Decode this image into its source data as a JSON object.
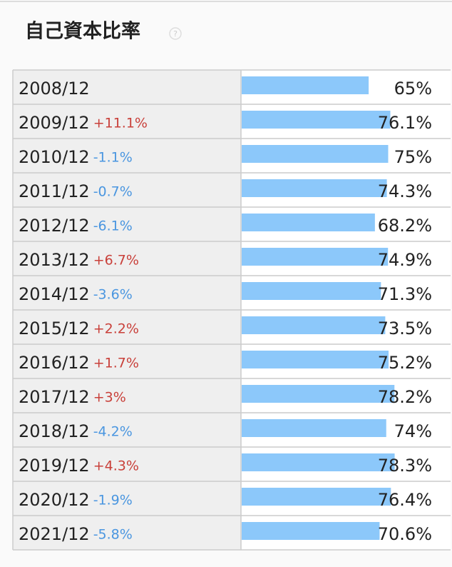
{
  "chart_data": {
    "type": "bar",
    "title": "自己資本比率",
    "categories": [
      "2008/12",
      "2009/12",
      "2010/12",
      "2011/12",
      "2012/12",
      "2013/12",
      "2014/12",
      "2015/12",
      "2016/12",
      "2017/12",
      "2018/12",
      "2019/12",
      "2020/12",
      "2021/12"
    ],
    "changes": [
      null,
      "+11.1%",
      "-1.1%",
      "-0.7%",
      "-6.1%",
      "+6.7%",
      "-3.6%",
      "+2.2%",
      "+1.7%",
      "+3%",
      "-4.2%",
      "+4.3%",
      "-1.9%",
      "-5.8%"
    ],
    "values": [
      65,
      76.1,
      75,
      74.3,
      68.2,
      74.9,
      71.3,
      73.5,
      75.2,
      78.2,
      74,
      78.3,
      76.4,
      70.6
    ],
    "value_labels": [
      "65%",
      "76.1%",
      "75%",
      "74.3%",
      "68.2%",
      "74.9%",
      "71.3%",
      "73.5%",
      "75.2%",
      "78.2%",
      "74%",
      "78.3%",
      "76.4%",
      "70.6%"
    ],
    "xlim": [
      0,
      100
    ],
    "colors": {
      "bar": "#8cc8fa",
      "up": "#c9403a",
      "down": "#4a96e0"
    }
  }
}
